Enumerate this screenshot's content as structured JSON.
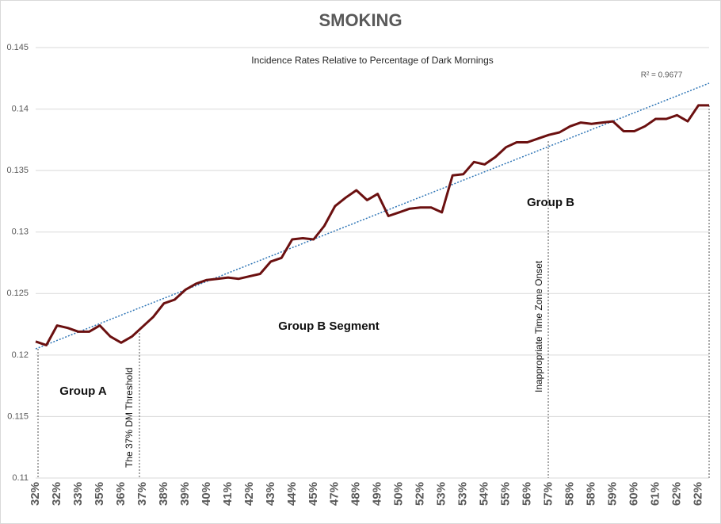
{
  "chart_data": {
    "type": "line",
    "title": "SMOKING",
    "subtitle": "Incidence Rates Relative to Percentage of Dark Mornings",
    "r_squared_label": "R² = 0.9677",
    "annotations": [
      "Group A",
      "Group B Segment",
      "Group B"
    ],
    "threshold_labels": [
      "The 37% DM Threshold",
      "Inappropriate Time Zone Onset"
    ],
    "categories": [
      "32%",
      null,
      "32%",
      null,
      "33%",
      null,
      "35%",
      null,
      "36%",
      null,
      "37%",
      null,
      "38%",
      null,
      "39%",
      null,
      "40%",
      null,
      "41%",
      null,
      "42%",
      null,
      "43%",
      null,
      "44%",
      null,
      "45%",
      null,
      "47%",
      null,
      "48%",
      null,
      "49%",
      null,
      "50%",
      null,
      "52%",
      null,
      "53%",
      null,
      "53%",
      null,
      "54%",
      null,
      "55%",
      null,
      "56%",
      null,
      "57%",
      null,
      "58%",
      null,
      "58%",
      null,
      "59%",
      null,
      "60%",
      null,
      "61%",
      null,
      "62%",
      null,
      "62%",
      null
    ],
    "series": [
      {
        "name": "Smoking",
        "color": "#6b1010",
        "values": [
          0.1211,
          0.1208,
          0.1224,
          0.1222,
          0.1219,
          0.1219,
          0.1224,
          0.1215,
          0.121,
          0.1215,
          0.1223,
          0.1231,
          0.1242,
          0.1245,
          0.1253,
          0.1258,
          0.1261,
          0.1262,
          0.1263,
          0.1262,
          0.1264,
          0.1266,
          0.1276,
          0.1279,
          0.1294,
          0.1295,
          0.1294,
          0.1305,
          0.1321,
          0.1328,
          0.1334,
          0.1326,
          0.1331,
          0.1313,
          0.1316,
          0.1319,
          0.132,
          0.132,
          0.1316,
          0.1346,
          0.1347,
          0.1357,
          0.1355,
          0.1361,
          0.1369,
          0.1373,
          0.1373,
          0.1376,
          0.1379,
          0.1381,
          0.1386,
          0.1389,
          0.1388,
          0.1389,
          0.139,
          0.1382,
          0.1382,
          0.1386,
          0.1392,
          0.1392,
          0.1395,
          0.139,
          0.1403,
          0.1403
        ]
      }
    ],
    "trendline": {
      "color": "#2e75b6",
      "values": [
        0.1205,
        0.1421
      ]
    },
    "ylim": [
      0.11,
      0.145
    ],
    "yticks": [
      0.11,
      0.115,
      0.12,
      0.125,
      0.13,
      0.135,
      0.14,
      0.145
    ],
    "grid": true
  }
}
